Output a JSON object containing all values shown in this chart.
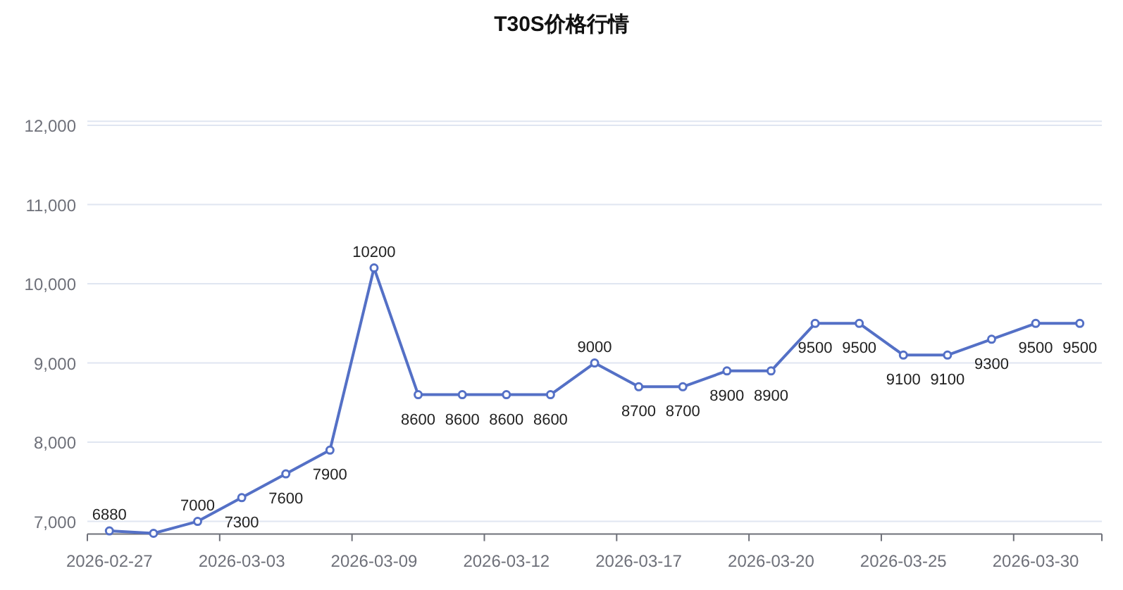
{
  "chart_data": {
    "type": "line",
    "title": "T30S价格行情",
    "categories": [
      "2026-02-27",
      null,
      null,
      "2026-03-03",
      null,
      null,
      "2026-03-09",
      null,
      null,
      "2026-03-12",
      null,
      null,
      "2026-03-17",
      null,
      null,
      "2026-03-20",
      null,
      null,
      "2026-03-25",
      null,
      null,
      "2026-03-30",
      null
    ],
    "series": [
      {
        "color": "#5470c6",
        "values": [
          6880,
          6850,
          7000,
          7300,
          7600,
          7900,
          10200,
          8600,
          8600,
          8600,
          8600,
          9000,
          8700,
          8700,
          8900,
          8900,
          9500,
          9500,
          9100,
          9100,
          9300,
          9500,
          9500
        ],
        "value_labels": [
          "6880",
          null,
          "7000",
          "7300",
          "7600",
          "7900",
          "10200",
          "8600",
          "8600",
          "8600",
          "8600",
          "9000",
          "8700",
          "8700",
          "8900",
          "8900",
          "9500",
          "9500",
          "9100",
          "9100",
          "9300",
          "9500",
          "9500"
        ]
      }
    ],
    "ylim": [
      6840,
      12050
    ],
    "yticks": [
      {
        "value": 7000,
        "label": "7,000"
      },
      {
        "value": 8000,
        "label": "8,000"
      },
      {
        "value": 9000,
        "label": "9,000"
      },
      {
        "value": 10000,
        "label": "10,000"
      },
      {
        "value": 11000,
        "label": "11,000"
      },
      {
        "value": 12000,
        "label": "12,000"
      }
    ],
    "grid": "y",
    "marker": "circle",
    "line_style": "solid"
  }
}
